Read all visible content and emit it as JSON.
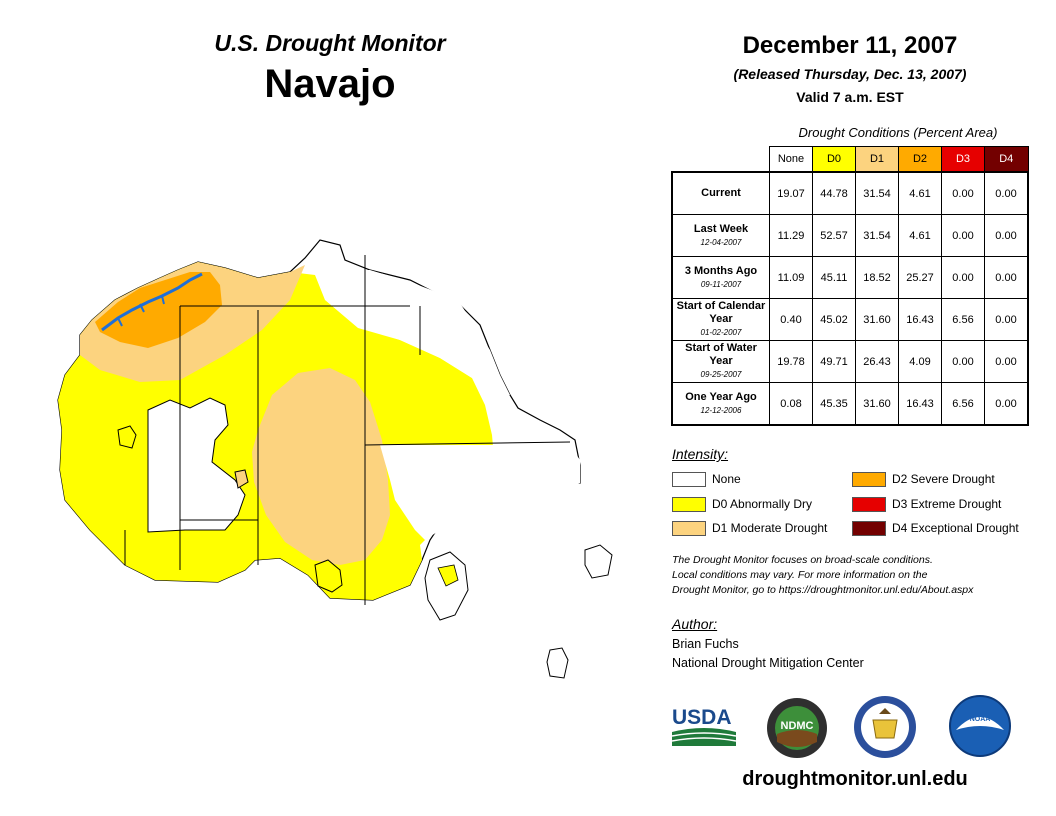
{
  "header": {
    "subtitle": "U.S. Drought Monitor",
    "region": "Navajo",
    "date": "December 11, 2007",
    "released": "(Released Thursday, Dec. 13, 2007)",
    "valid": "Valid 7 a.m. EST"
  },
  "table": {
    "caption": "Drought Conditions (Percent Area)",
    "columns": [
      "None",
      "D0",
      "D1",
      "D2",
      "D3",
      "D4"
    ],
    "column_colors": [
      "#ffffff",
      "#ffff00",
      "#fcd37f",
      "#ffaa00",
      "#e60000",
      "#730000"
    ],
    "column_text_colors": [
      "#000000",
      "#000000",
      "#000000",
      "#000000",
      "#ffffff",
      "#ffffff"
    ],
    "rows": [
      {
        "label": "Current",
        "date": "",
        "values": [
          "19.07",
          "44.78",
          "31.54",
          "4.61",
          "0.00",
          "0.00"
        ]
      },
      {
        "label": "Last Week",
        "date": "12-04-2007",
        "values": [
          "11.29",
          "52.57",
          "31.54",
          "4.61",
          "0.00",
          "0.00"
        ]
      },
      {
        "label": "3 Months Ago",
        "date": "09-11-2007",
        "values": [
          "11.09",
          "45.11",
          "18.52",
          "25.27",
          "0.00",
          "0.00"
        ]
      },
      {
        "label": "Start of Calendar Year",
        "date": "01-02-2007",
        "values": [
          "0.40",
          "45.02",
          "31.60",
          "16.43",
          "6.56",
          "0.00"
        ]
      },
      {
        "label": "Start of Water Year",
        "date": "09-25-2007",
        "values": [
          "19.78",
          "49.71",
          "26.43",
          "4.09",
          "0.00",
          "0.00"
        ]
      },
      {
        "label": "One Year Ago",
        "date": "12-12-2006",
        "values": [
          "0.08",
          "45.35",
          "31.60",
          "16.43",
          "6.56",
          "0.00"
        ]
      }
    ]
  },
  "legend": {
    "title": "Intensity:",
    "items": [
      {
        "label": "None",
        "color": "#ffffff"
      },
      {
        "label": "D0 Abnormally Dry",
        "color": "#ffff00"
      },
      {
        "label": "D1 Moderate Drought",
        "color": "#fcd37f"
      },
      {
        "label": "D2 Severe Drought",
        "color": "#ffaa00"
      },
      {
        "label": "D3 Extreme Drought",
        "color": "#e60000"
      },
      {
        "label": "D4 Exceptional Drought",
        "color": "#730000"
      }
    ]
  },
  "note": {
    "line1": "The Drought Monitor focuses on broad-scale conditions.",
    "line2": "Local conditions may vary. For more information on the",
    "line3": "Drought Monitor, go to https://droughtmonitor.unl.edu/About.aspx"
  },
  "author": {
    "title": "Author:",
    "name": "Brian Fuchs",
    "org": "National Drought Mitigation Center"
  },
  "logos": {
    "usda": "USDA",
    "ndmc": "NDMC",
    "noaa": "NOAA"
  },
  "footer": {
    "site": "droughtmonitor.unl.edu"
  },
  "map_colors": {
    "d0": "#ffff00",
    "d1": "#fcd37f",
    "d2": "#ffaa00",
    "water": "#1f6fd6"
  }
}
